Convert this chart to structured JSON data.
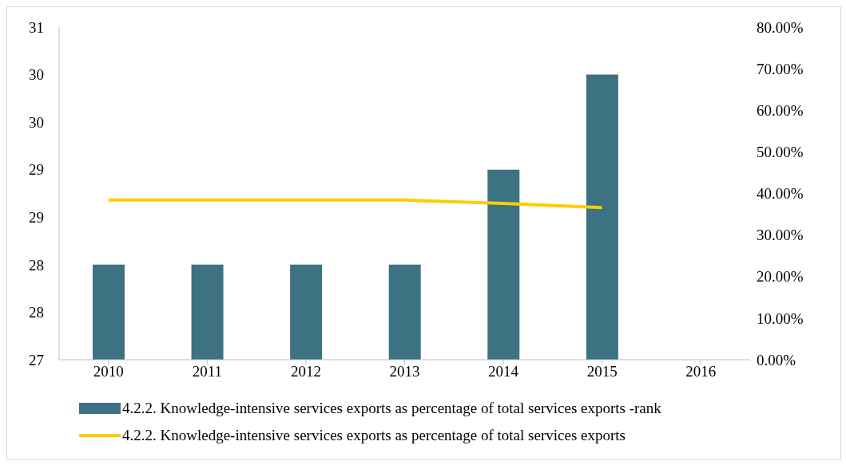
{
  "chart_data": {
    "type": "bar",
    "categories": [
      "2010",
      "2011",
      "2012",
      "2013",
      "2014",
      "2015",
      "2016"
    ],
    "series": [
      {
        "name": "4.2.2. Knowledge-intensive services exports as percentage of total services exports -rank",
        "color": "#3c7282",
        "values": [
          28,
          28,
          28,
          28,
          29,
          30,
          null
        ]
      },
      {
        "name": "4.2.2. Knowledge-intensive services exports as percentage of total services exports",
        "type": "line",
        "axis": "y2",
        "color": "#ffcc00",
        "values": [
          38.4,
          38.4,
          38.4,
          38.4,
          37.6,
          36.6,
          null
        ]
      }
    ],
    "ylim": [
      27,
      30.5
    ],
    "yticks": [
      27,
      {
        "value": 27.5,
        "label": "28"
      },
      28,
      {
        "value": 28.5,
        "label": "29"
      },
      29,
      {
        "value": 29.5,
        "label": "30"
      },
      30,
      {
        "value": 30.5,
        "label": "31"
      }
    ],
    "y2lim": [
      0,
      80
    ],
    "y2ticks": [
      {
        "value": 0,
        "label": "0.00%"
      },
      {
        "value": 10,
        "label": "10.00%"
      },
      {
        "value": 20,
        "label": "20.00%"
      },
      {
        "value": 30,
        "label": "30.00%"
      },
      {
        "value": 40,
        "label": "40.00%"
      },
      {
        "value": 50,
        "label": "50.00%"
      },
      {
        "value": 60,
        "label": "60.00%"
      },
      {
        "value": 70,
        "label": "70.00%"
      },
      {
        "value": 80,
        "label": "80.00%"
      }
    ],
    "grid": false,
    "legend": "bottom",
    "marker": "none",
    "line_style": "solid"
  }
}
